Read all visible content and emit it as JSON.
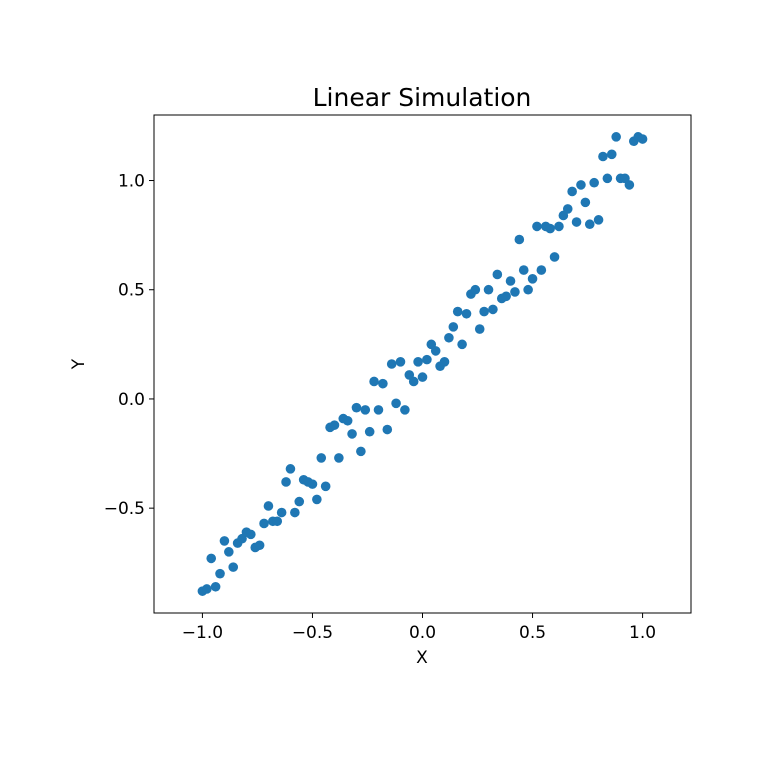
{
  "chart_data": {
    "type": "scatter",
    "title": "Linear Simulation",
    "xlabel": "X",
    "ylabel": "Y",
    "xlim": [
      -1.22,
      1.22
    ],
    "ylim": [
      -0.98,
      1.3
    ],
    "grid": false,
    "color": "#1f77b4",
    "xticks": [
      -1.0,
      -0.5,
      0.0,
      0.5,
      1.0
    ],
    "xtick_labels": [
      "−1.0",
      "−0.5",
      "0.0",
      "0.5",
      "1.0"
    ],
    "yticks": [
      -0.5,
      0.0,
      0.5,
      1.0
    ],
    "ytick_labels": [
      "−0.5",
      "0.0",
      "0.5",
      "1.0"
    ],
    "series": [
      {
        "x": [
          -1.0,
          -0.98,
          -0.96,
          -0.94,
          -0.92,
          -0.9,
          -0.88,
          -0.86,
          -0.84,
          -0.82,
          -0.8,
          -0.78,
          -0.76,
          -0.74,
          -0.72,
          -0.7,
          -0.68,
          -0.66,
          -0.64,
          -0.62,
          -0.6,
          -0.58,
          -0.56,
          -0.54,
          -0.52,
          -0.5,
          -0.48,
          -0.46,
          -0.44,
          -0.42,
          -0.4,
          -0.38,
          -0.36,
          -0.34,
          -0.32,
          -0.3,
          -0.28,
          -0.26,
          -0.24,
          -0.22,
          -0.2,
          -0.18,
          -0.16,
          -0.14,
          -0.12,
          -0.1,
          -0.08,
          -0.06,
          -0.04,
          -0.02,
          0.0,
          0.02,
          0.04,
          0.06,
          0.08,
          0.1,
          0.12,
          0.14,
          0.16,
          0.18,
          0.2,
          0.22,
          0.24,
          0.26,
          0.28,
          0.3,
          0.32,
          0.34,
          0.36,
          0.38,
          0.4,
          0.42,
          0.44,
          0.46,
          0.48,
          0.5,
          0.52,
          0.54,
          0.56,
          0.58,
          0.6,
          0.62,
          0.64,
          0.66,
          0.68,
          0.7,
          0.72,
          0.74,
          0.76,
          0.78,
          0.8,
          0.82,
          0.84,
          0.86,
          0.88,
          0.9,
          0.92,
          0.94,
          0.96,
          0.98,
          1.0
        ],
        "y": [
          -0.88,
          -0.87,
          -0.73,
          -0.86,
          -0.8,
          -0.65,
          -0.7,
          -0.77,
          -0.66,
          -0.64,
          -0.61,
          -0.62,
          -0.68,
          -0.67,
          -0.57,
          -0.49,
          -0.56,
          -0.56,
          -0.52,
          -0.38,
          -0.32,
          -0.52,
          -0.47,
          -0.37,
          -0.38,
          -0.39,
          -0.46,
          -0.27,
          -0.4,
          -0.13,
          -0.12,
          -0.27,
          -0.09,
          -0.1,
          -0.16,
          -0.04,
          -0.24,
          -0.05,
          -0.15,
          0.08,
          -0.05,
          0.07,
          -0.14,
          0.16,
          -0.02,
          0.17,
          -0.05,
          0.11,
          0.08,
          0.17,
          0.1,
          0.18,
          0.25,
          0.22,
          0.15,
          0.17,
          0.28,
          0.33,
          0.4,
          0.25,
          0.39,
          0.48,
          0.5,
          0.32,
          0.4,
          0.5,
          0.41,
          0.57,
          0.46,
          0.47,
          0.54,
          0.49,
          0.73,
          0.59,
          0.5,
          0.55,
          0.79,
          0.59,
          0.79,
          0.78,
          0.65,
          0.79,
          0.84,
          0.87,
          0.95,
          0.81,
          0.98,
          0.9,
          0.8,
          0.99,
          0.82,
          1.11,
          1.01,
          1.12,
          1.2,
          1.01,
          1.01,
          0.98,
          1.18,
          1.2,
          1.19
        ]
      }
    ]
  }
}
